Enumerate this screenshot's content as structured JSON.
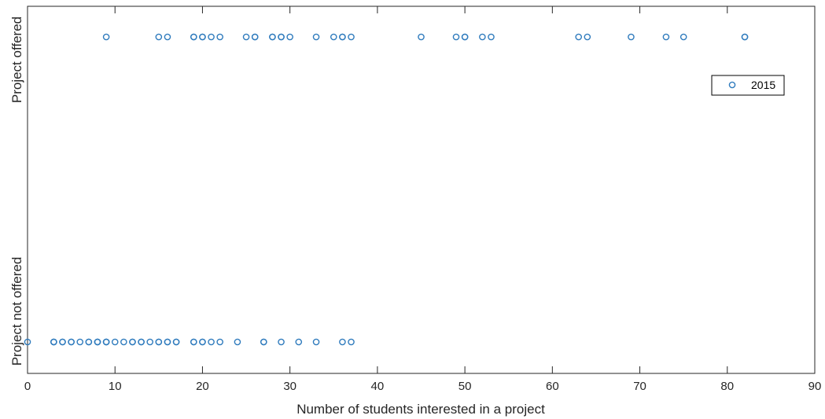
{
  "chart_data": {
    "type": "scatter",
    "xlabel": "Number of students interested in a project",
    "xlim": [
      0,
      90
    ],
    "xticks": [
      0,
      10,
      20,
      30,
      40,
      50,
      60,
      70,
      80,
      90
    ],
    "ycategories": [
      "Project not offered",
      "Project offered"
    ],
    "grid": false,
    "legend": "right",
    "marker": "open-circle",
    "color": "#2f7bbd",
    "series": [
      {
        "name": "2015",
        "offered": [
          9,
          15,
          16,
          19,
          19,
          20,
          20,
          21,
          22,
          25,
          26,
          26,
          28,
          28,
          29,
          29,
          30,
          33,
          35,
          36,
          36,
          37,
          45,
          49,
          50,
          50,
          52,
          53,
          63,
          64,
          69,
          73,
          75,
          82,
          82
        ],
        "not_offered": [
          0,
          3,
          3,
          3,
          4,
          4,
          5,
          5,
          6,
          7,
          7,
          8,
          8,
          8,
          9,
          9,
          9,
          10,
          11,
          12,
          12,
          13,
          13,
          14,
          15,
          15,
          16,
          16,
          17,
          17,
          19,
          19,
          20,
          20,
          21,
          22,
          24,
          27,
          27,
          29,
          31,
          33,
          36,
          37
        ]
      }
    ]
  }
}
